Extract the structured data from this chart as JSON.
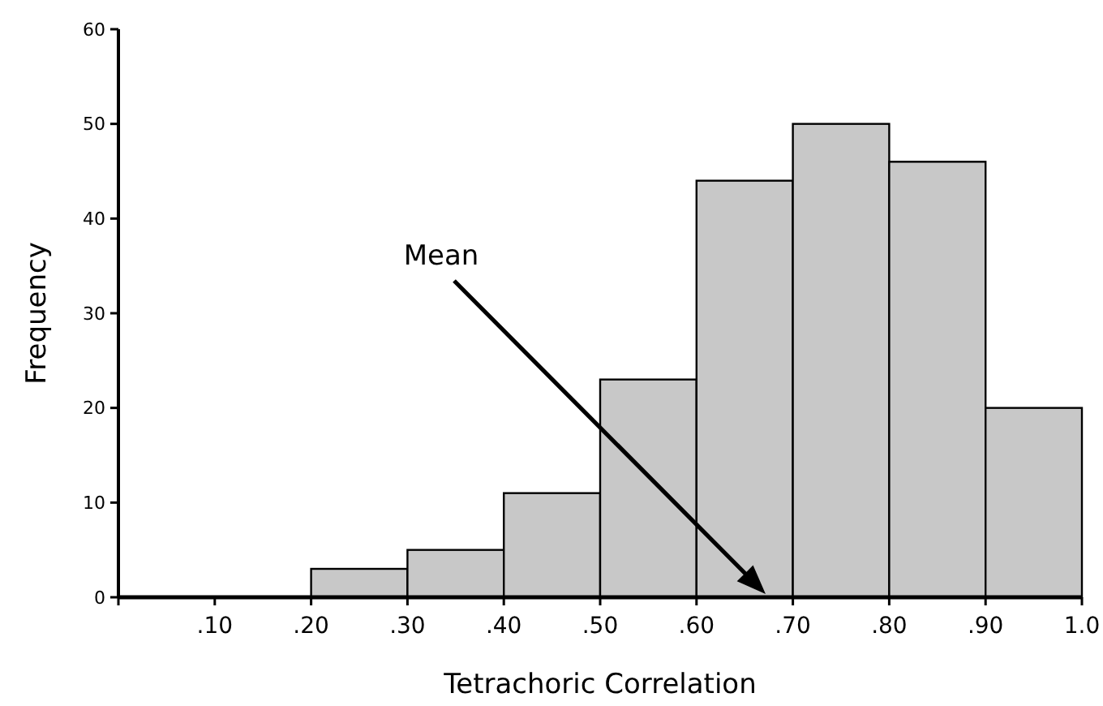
{
  "chart_data": {
    "type": "histogram",
    "xlabel": "Tetrachoric Correlation",
    "ylabel": "Frequency",
    "bins": [
      0,
      0.1,
      0.2,
      0.3,
      0.4,
      0.5,
      0.6,
      0.7,
      0.8,
      0.9,
      1.0
    ],
    "values": [
      0,
      0,
      3,
      5,
      11,
      23,
      44,
      50,
      46,
      20
    ],
    "color": "#c8c8c8",
    "xlim": [
      0,
      1.0
    ],
    "xticks": [
      {
        "value": 0,
        "label": null
      },
      {
        "value": 0.1,
        "label": ".10"
      },
      {
        "value": 0.2,
        "label": ".20"
      },
      {
        "value": 0.3,
        "label": ".30"
      },
      {
        "value": 0.4,
        "label": ".40"
      },
      {
        "value": 0.5,
        "label": ".50"
      },
      {
        "value": 0.6,
        "label": ".60"
      },
      {
        "value": 0.7,
        "label": ".70"
      },
      {
        "value": 0.8,
        "label": ".80"
      },
      {
        "value": 0.9,
        "label": ".90"
      },
      {
        "value": 1.0,
        "label": "1.0"
      }
    ],
    "ylim": [
      0,
      60
    ],
    "yticks": [
      0,
      10,
      20,
      30,
      40,
      50,
      60
    ],
    "annotations": [
      "Mean"
    ],
    "grid": false
  }
}
